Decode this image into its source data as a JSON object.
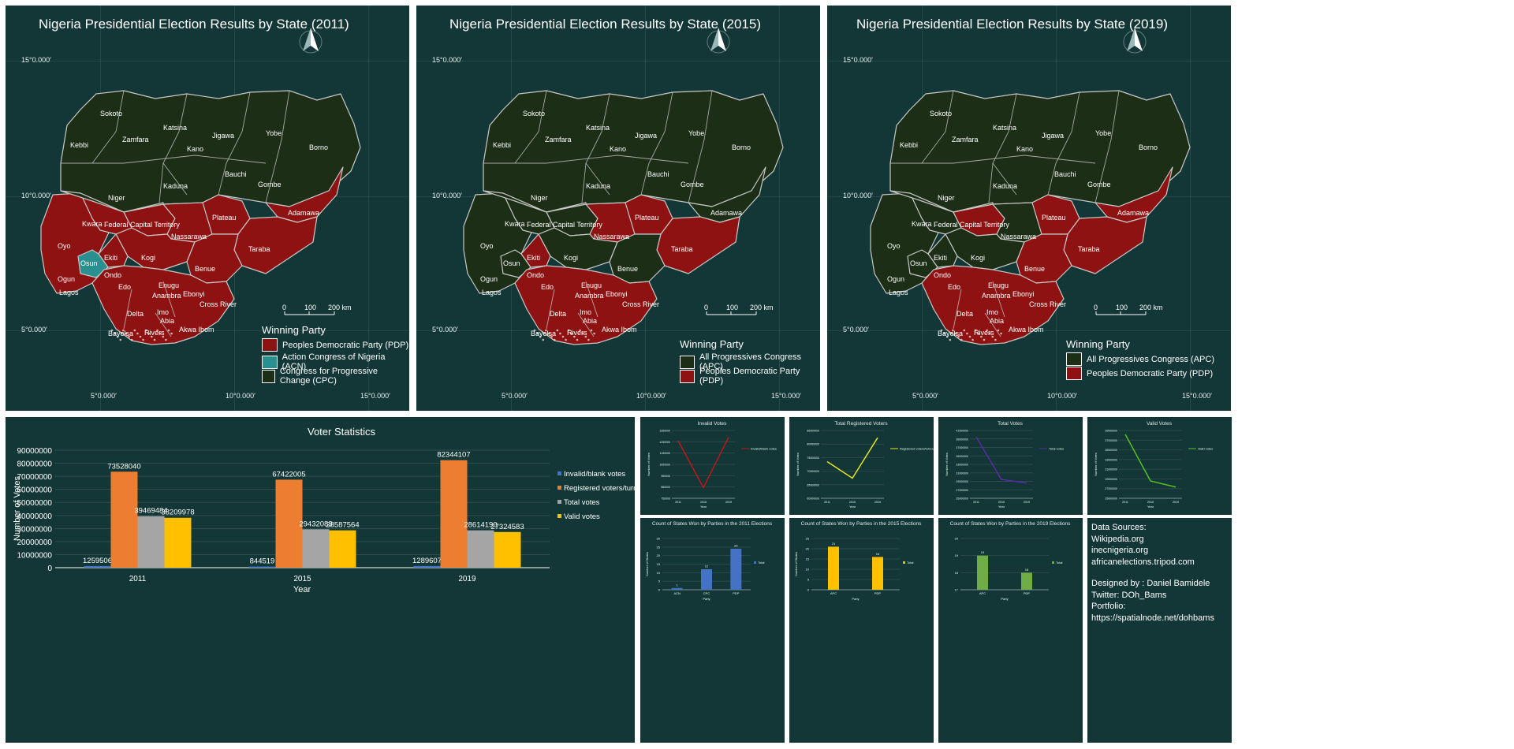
{
  "maps": [
    {
      "title": "Nigeria Presidential Election Results by State (2011)",
      "lat_labels": [
        "15°0.000′",
        "10°0.000′",
        "5°0.000′"
      ],
      "lon_labels": [
        "5°0.000′",
        "10°0.000′",
        "15°0.000′"
      ],
      "scale_labels": [
        "0",
        "100",
        "200 km"
      ],
      "legend_title": "Winning Party",
      "legend": [
        {
          "label": "Peoples Democratic Party (PDP)",
          "color": "#8e1212"
        },
        {
          "label": "Action Congress of Nigeria (ACN)",
          "color": "#2a8f8f"
        },
        {
          "label": "Congress for Progressive Change (CPC)",
          "color": "#1c2e16"
        }
      ],
      "winners": {
        "north": "CPC",
        "niger": "CPC",
        "kaduna": "CPC",
        "south_west": "PDP",
        "osun": "ACN",
        "ekiti": "PDP",
        "kwara": "PDP",
        "fct": "PDP",
        "kogi": "PDP",
        "plateau": "PDP",
        "nassarawa": "PDP",
        "adamawa": "PDP",
        "taraba": "PDP",
        "benue": "PDP",
        "south": "PDP",
        "oyo": "PDP"
      }
    },
    {
      "title": "Nigeria Presidential Election Results by State (2015)",
      "lat_labels": [
        "15°0.000′",
        "10°0.000′",
        "5°0.000′"
      ],
      "lon_labels": [
        "5°0.000′",
        "10°0.000′",
        "15°0.000′"
      ],
      "scale_labels": [
        "0",
        "100",
        "200 km"
      ],
      "legend_title": "Winning Party",
      "legend": [
        {
          "label": "All Progressives Congress (APC)",
          "color": "#1c2e16"
        },
        {
          "label": "Peoples Democratic Party (PDP)",
          "color": "#8e1212"
        }
      ]
    },
    {
      "title": "Nigeria Presidential Election Results by State (2019)",
      "lat_labels": [
        "15°0.000′",
        "10°0.000′",
        "5°0.000′"
      ],
      "lon_labels": [
        "5°0.000′",
        "10°0.000′",
        "15°0.000′"
      ],
      "scale_labels": [
        "0",
        "100",
        "200 km"
      ],
      "legend_title": "Winning Party",
      "legend": [
        {
          "label": "All Progressives Congress (APC)",
          "color": "#1c2e16"
        },
        {
          "label": "Peoples Democratic Party (PDP)",
          "color": "#8e1212"
        }
      ]
    }
  ],
  "state_names": [
    "Sokoto",
    "Katsina",
    "Jigawa",
    "Yobe",
    "Borno",
    "Kebbi",
    "Zamfara",
    "Kano",
    "Bauchi",
    "Gombe",
    "Niger",
    "Kaduna",
    "Adamawa",
    "Kwara",
    "Federal Capital Territory",
    "Plateau",
    "Nassarawa",
    "Oyo",
    "Osun",
    "Ekiti",
    "Kogi",
    "Taraba",
    "Benue",
    "Ogun",
    "Ondo",
    "Edo",
    "Lagos",
    "Enugu",
    "Anambra",
    "Ebonyi",
    "Cross River",
    "Delta",
    "Imo",
    "Abia",
    "Bayelsa",
    "Rivers",
    "Akwa Ibom"
  ],
  "chart_data": [
    {
      "type": "bar",
      "title": "Voter Statistics",
      "xlabel": "Year",
      "ylabel": "Number of Votes",
      "categories": [
        "2011",
        "2015",
        "2019"
      ],
      "y_ticks": [
        "0",
        "10000000",
        "20000000",
        "30000000",
        "40000000",
        "50000000",
        "60000000",
        "70000000",
        "80000000",
        "90000000"
      ],
      "ylim": [
        0,
        90000000
      ],
      "legend_position": "right",
      "series": [
        {
          "name": "Invalid/blank votes",
          "color": "#4472c4",
          "values": [
            1259506,
            844519,
            1289607
          ]
        },
        {
          "name": "Registered voters/turnout",
          "color": "#ed7d31",
          "values": [
            73528040,
            67422005,
            82344107
          ]
        },
        {
          "name": "Total votes",
          "color": "#a5a5a5",
          "values": [
            39469484,
            29432083,
            28614190
          ]
        },
        {
          "name": "Valid votes",
          "color": "#ffc000",
          "values": [
            38209978,
            28587564,
            27324583
          ]
        }
      ]
    },
    {
      "type": "line",
      "title": "Invalid Votes",
      "xlabel": "Year",
      "ylabel": "Number of Votes",
      "categories": [
        "2011",
        "2015",
        "2019"
      ],
      "ylim": [
        750000,
        1350000
      ],
      "y_ticks": [
        "750000",
        "850000",
        "950000",
        "1050000",
        "1150000",
        "1250000",
        "1350000"
      ],
      "series": [
        {
          "name": "Invalid/blank votes",
          "color": "#c01818",
          "values": [
            1259506,
            844519,
            1289607
          ]
        }
      ]
    },
    {
      "type": "line",
      "title": "Total Registered Voters",
      "xlabel": "Year",
      "ylabel": "Number of Votes",
      "categories": [
        "2011",
        "2015",
        "2019"
      ],
      "ylim": [
        60000000,
        85000000
      ],
      "y_ticks": [
        "60000000",
        "65000000",
        "70000000",
        "75000000",
        "80000000",
        "85000000"
      ],
      "series": [
        {
          "name": "Registered voters/turnout",
          "color": "#e8e820",
          "values": [
            73528040,
            67422005,
            82344107
          ]
        }
      ]
    },
    {
      "type": "line",
      "title": "Total Votes",
      "xlabel": "Year",
      "ylabel": "Number of Votes",
      "categories": [
        "2011",
        "2015",
        "2019"
      ],
      "ylim": [
        25000000,
        41000000
      ],
      "y_ticks": [
        "25000000",
        "27000000",
        "29000000",
        "31000000",
        "33000000",
        "35000000",
        "37000000",
        "39000000",
        "41000000"
      ],
      "series": [
        {
          "name": "Total votes",
          "color": "#5a2aa8",
          "values": [
            39469484,
            29432083,
            28614190
          ]
        }
      ]
    },
    {
      "type": "line",
      "title": "Valid Votes",
      "xlabel": "Year",
      "ylabel": "Number of Votes",
      "categories": [
        "2011",
        "2015",
        "2019"
      ],
      "ylim": [
        25000000,
        39000000
      ],
      "y_ticks": [
        "25000000",
        "27000000",
        "29000000",
        "31000000",
        "33000000",
        "35000000",
        "37000000",
        "39000000"
      ],
      "series": [
        {
          "name": "Valid votes",
          "color": "#55c020",
          "values": [
            38209978,
            28587564,
            27324583
          ]
        }
      ]
    },
    {
      "type": "bar",
      "title": "Count of States Won by Parties in the 2011 Elections",
      "xlabel": "Party",
      "ylabel": "Number of States",
      "categories": [
        "ACN",
        "CPC",
        "PDP"
      ],
      "ylim": [
        0,
        30
      ],
      "y_ticks": [
        "0",
        "5",
        "10",
        "15",
        "20",
        "25",
        "30"
      ],
      "series": [
        {
          "name": "Total",
          "color": "#4472c4",
          "values": [
            1,
            12,
            24
          ]
        }
      ]
    },
    {
      "type": "bar",
      "title": "Count of States Won by Parties in the 2015 Elections",
      "xlabel": "Party",
      "ylabel": "Number of States",
      "categories": [
        "APC",
        "PDP"
      ],
      "ylim": [
        0,
        25
      ],
      "y_ticks": [
        "0",
        "5",
        "10",
        "15",
        "20",
        "25"
      ],
      "series": [
        {
          "name": "Total",
          "color": "#ffc000",
          "values": [
            21,
            16
          ]
        }
      ]
    },
    {
      "type": "bar",
      "title": "Count of States Won by Parties in the 2019 Elections",
      "xlabel": "Party",
      "ylabel": "",
      "categories": [
        "APC",
        "PDP"
      ],
      "ylim": [
        17,
        20
      ],
      "y_ticks": [
        "17",
        "18",
        "19",
        "20"
      ],
      "series": [
        {
          "name": "Total",
          "color": "#70ad47",
          "values": [
            19,
            18
          ]
        }
      ]
    }
  ],
  "sources": {
    "heading": "Data Sources:",
    "lines": [
      "Wikipedia.org",
      "inecnigeria.org",
      "africanelections.tripod.com"
    ],
    "designer": "Designed by : Daniel Bamidele",
    "twitter": "Twitter: DOh_Bams",
    "portfolio": "Portfolio: https://spatialnode.net/dohbams"
  }
}
